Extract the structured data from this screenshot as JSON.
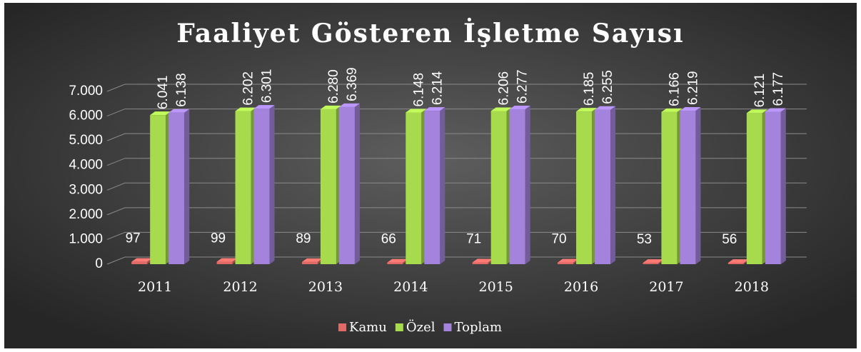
{
  "chart_data": {
    "type": "bar3d",
    "title": "Faaliyet Gösteren İşletme Sayısı",
    "categories": [
      "2011",
      "2012",
      "2013",
      "2014",
      "2015",
      "2016",
      "2017",
      "2018"
    ],
    "series": [
      {
        "name": "Kamu",
        "color": "#e06a66",
        "values": [
          97,
          99,
          89,
          66,
          71,
          70,
          53,
          56
        ]
      },
      {
        "name": "Özel",
        "color": "#a8da4e",
        "values": [
          6041,
          6202,
          6280,
          6148,
          6206,
          6185,
          6166,
          6121
        ],
        "value_labels": [
          "6.041",
          "6.202",
          "6.280",
          "6.148",
          "6.206",
          "6.185",
          "6.166",
          "6.121"
        ]
      },
      {
        "name": "Toplam",
        "color": "#a383dc",
        "values": [
          6138,
          6301,
          6369,
          6214,
          6277,
          6255,
          6219,
          6177
        ],
        "value_labels": [
          "6.138",
          "6.301",
          "6.369",
          "6.214",
          "6.277",
          "6.255",
          "6.219",
          "6.177"
        ]
      }
    ],
    "ylim": [
      0,
      7000
    ],
    "yticks": [
      0,
      {
        "value": 1000,
        "label": "1.000"
      },
      {
        "value": 2000,
        "label": "2.000"
      },
      {
        "value": 3000,
        "label": "3.000"
      },
      {
        "value": 4000,
        "label": "4.000"
      },
      {
        "value": 5000,
        "label": "5.000"
      },
      {
        "value": 6000,
        "label": "6.000"
      },
      {
        "value": 7000,
        "label": "7.000"
      }
    ],
    "grid": true,
    "legend": "bottom"
  }
}
